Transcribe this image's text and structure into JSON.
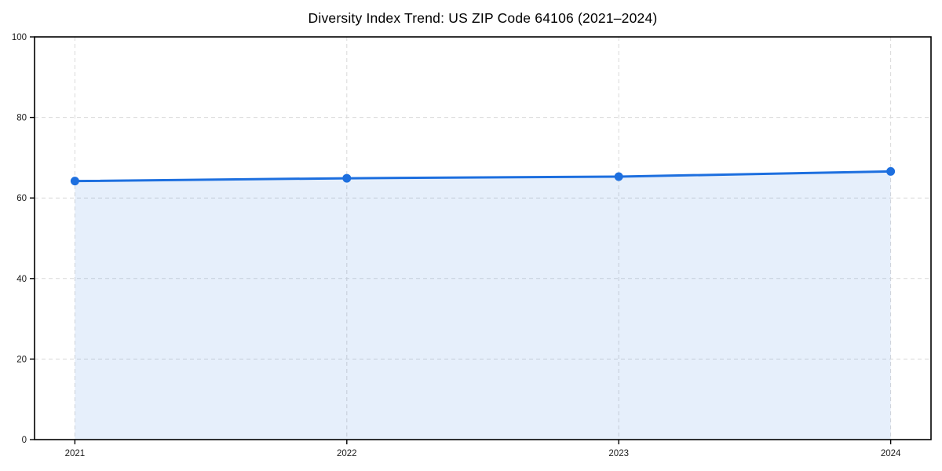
{
  "chart_data": {
    "type": "area",
    "title": "Diversity Index Trend: US ZIP Code 64106 (2021–2024)",
    "categories": [
      "2021",
      "2022",
      "2023",
      "2024"
    ],
    "series": [
      {
        "name": "Diversity Index",
        "values": [
          64.2,
          64.9,
          65.3,
          66.6
        ]
      }
    ],
    "xlabel": "",
    "ylabel": "",
    "ylim": [
      0,
      100
    ],
    "yticks": [
      0,
      20,
      40,
      60,
      80,
      100
    ],
    "grid": "dashed-both-axes",
    "legend": "none",
    "colors": {
      "line": "#1d6fdf",
      "marker": "#1d6fdf",
      "area_fill": "rgba(29,111,223,0.11)",
      "gridline": "#d9d9d9",
      "spine": "#000000",
      "tick_text": "#1a1a1a",
      "background": "#ffffff"
    }
  }
}
